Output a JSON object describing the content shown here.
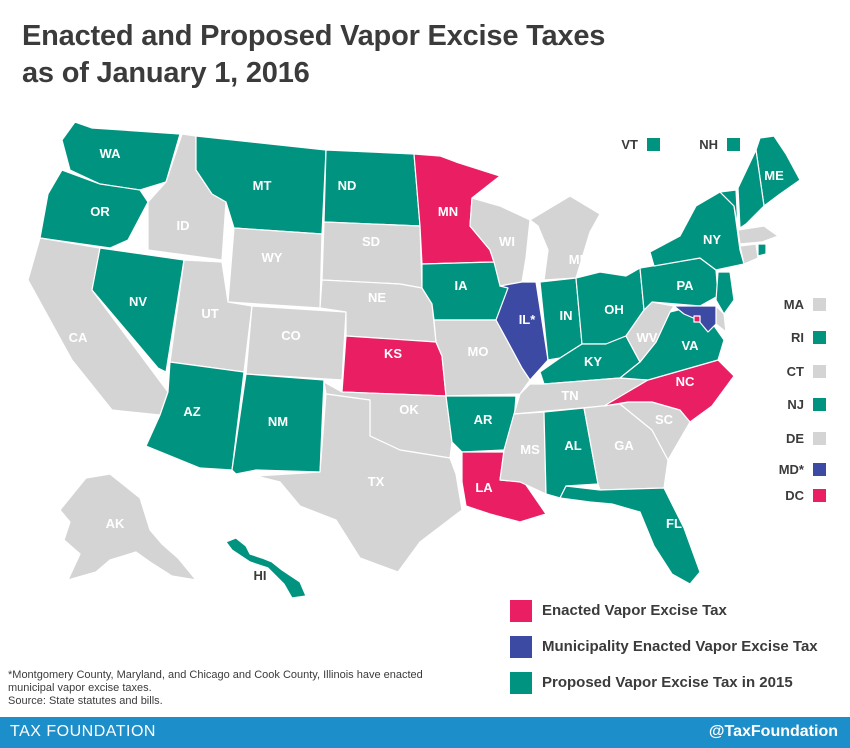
{
  "title": {
    "line1": "Enacted and Proposed Vapor Excise Taxes",
    "line2": "as of January 1, 2016"
  },
  "colors": {
    "enacted": "#e91e63",
    "municipality": "#3c4aa4",
    "proposed": "#00937f",
    "none": "#d4d4d4",
    "footer": "#1c8ec9"
  },
  "states": [
    {
      "abbr": "WA",
      "status": "proposed"
    },
    {
      "abbr": "OR",
      "status": "proposed"
    },
    {
      "abbr": "CA",
      "status": "none"
    },
    {
      "abbr": "NV",
      "status": "proposed"
    },
    {
      "abbr": "ID",
      "status": "none"
    },
    {
      "abbr": "MT",
      "status": "proposed"
    },
    {
      "abbr": "WY",
      "status": "none"
    },
    {
      "abbr": "UT",
      "status": "none"
    },
    {
      "abbr": "AZ",
      "status": "proposed"
    },
    {
      "abbr": "CO",
      "status": "none"
    },
    {
      "abbr": "NM",
      "status": "proposed"
    },
    {
      "abbr": "ND",
      "status": "proposed"
    },
    {
      "abbr": "SD",
      "status": "none"
    },
    {
      "abbr": "NE",
      "status": "none"
    },
    {
      "abbr": "KS",
      "status": "enacted"
    },
    {
      "abbr": "OK",
      "status": "none"
    },
    {
      "abbr": "TX",
      "status": "none"
    },
    {
      "abbr": "MN",
      "status": "enacted"
    },
    {
      "abbr": "IA",
      "status": "proposed"
    },
    {
      "abbr": "MO",
      "status": "none"
    },
    {
      "abbr": "AR",
      "status": "proposed"
    },
    {
      "abbr": "LA",
      "status": "enacted"
    },
    {
      "abbr": "WI",
      "status": "none"
    },
    {
      "abbr": "IL*",
      "status": "municipality"
    },
    {
      "abbr": "MI",
      "status": "none"
    },
    {
      "abbr": "IN",
      "status": "proposed"
    },
    {
      "abbr": "OH",
      "status": "proposed"
    },
    {
      "abbr": "KY",
      "status": "proposed"
    },
    {
      "abbr": "TN",
      "status": "none"
    },
    {
      "abbr": "MS",
      "status": "none"
    },
    {
      "abbr": "AL",
      "status": "proposed"
    },
    {
      "abbr": "GA",
      "status": "none"
    },
    {
      "abbr": "FL",
      "status": "proposed"
    },
    {
      "abbr": "SC",
      "status": "none"
    },
    {
      "abbr": "NC",
      "status": "enacted"
    },
    {
      "abbr": "VA",
      "status": "proposed"
    },
    {
      "abbr": "WV",
      "status": "none"
    },
    {
      "abbr": "PA",
      "status": "proposed"
    },
    {
      "abbr": "NY",
      "status": "proposed"
    },
    {
      "abbr": "ME",
      "status": "proposed"
    },
    {
      "abbr": "AK",
      "status": "none"
    },
    {
      "abbr": "HI",
      "status": "proposed"
    }
  ],
  "small_states": [
    {
      "abbr": "VT",
      "status": "proposed"
    },
    {
      "abbr": "NH",
      "status": "proposed"
    },
    {
      "abbr": "MA",
      "status": "none"
    },
    {
      "abbr": "RI",
      "status": "proposed"
    },
    {
      "abbr": "CT",
      "status": "none"
    },
    {
      "abbr": "NJ",
      "status": "proposed"
    },
    {
      "abbr": "DE",
      "status": "none"
    },
    {
      "abbr": "MD*",
      "status": "municipality"
    },
    {
      "abbr": "DC",
      "status": "enacted"
    }
  ],
  "legend": {
    "enacted": "Enacted Vapor Excise Tax",
    "municipality": "Municipality Enacted Vapor Excise Tax",
    "proposed": "Proposed Vapor Excise Tax in 2015"
  },
  "note": {
    "line1": "*Montgomery County, Maryland, and Chicago and Cook County, Illinois have enacted",
    "line2": "municipal vapor excise taxes.",
    "line3": "Source: State statutes and bills."
  },
  "footer": {
    "brand": "TAX FOUNDATION",
    "handle": "@TaxFoundation"
  }
}
